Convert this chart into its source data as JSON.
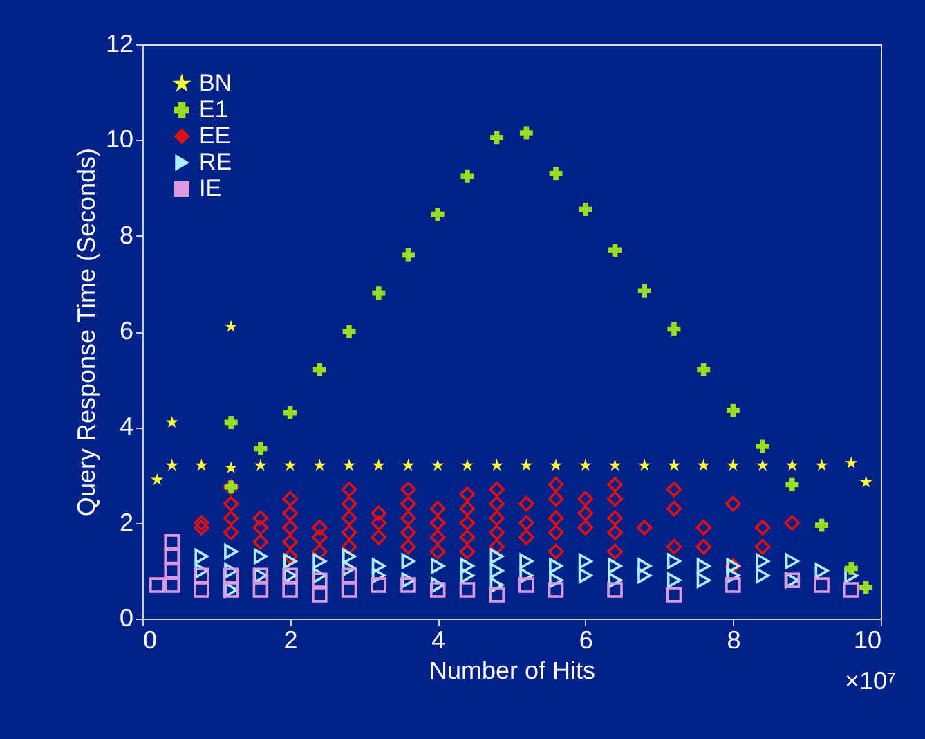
{
  "chart_data": {
    "type": "scatter",
    "xlabel": "Number of Hits",
    "ylabel": "Query Response Time (Seconds)",
    "annotations": [
      "×10⁷"
    ],
    "xlim": [
      0,
      10
    ],
    "xticks": [
      0,
      2,
      4,
      6,
      8,
      10
    ],
    "ylim": [
      0,
      12
    ],
    "yticks": [
      0,
      2,
      4,
      6,
      8,
      10,
      12
    ],
    "grid": false,
    "legend": "top left",
    "series": [
      {
        "name": "BN",
        "color": "#ffff33",
        "marker": "star",
        "x": [
          0.2,
          0.4,
          0.4,
          0.8,
          1.2,
          1.2,
          1.6,
          2.0,
          2.4,
          2.8,
          3.2,
          3.6,
          4.0,
          4.4,
          4.8,
          5.2,
          5.6,
          6.0,
          6.4,
          6.8,
          7.2,
          7.6,
          8.0,
          8.4,
          8.8,
          9.2,
          9.6,
          9.8
        ],
        "values": [
          2.9,
          4.1,
          3.2,
          3.2,
          6.1,
          3.15,
          3.2,
          3.2,
          3.2,
          3.2,
          3.2,
          3.2,
          3.2,
          3.2,
          3.2,
          3.2,
          3.2,
          3.2,
          3.2,
          3.2,
          3.2,
          3.2,
          3.2,
          3.2,
          3.2,
          3.2,
          3.25,
          2.85
        ]
      },
      {
        "name": "E1",
        "color": "#99dd22",
        "marker": "cross",
        "x": [
          1.2,
          1.2,
          1.6,
          2.0,
          2.4,
          2.8,
          3.2,
          3.6,
          4.0,
          4.4,
          4.8,
          5.2,
          5.6,
          6.0,
          6.4,
          6.8,
          7.2,
          7.6,
          8.0,
          8.4,
          8.8,
          9.2,
          9.6,
          9.8
        ],
        "values": [
          4.1,
          2.75,
          3.55,
          4.3,
          5.2,
          6.0,
          6.8,
          7.6,
          8.45,
          9.25,
          10.05,
          10.15,
          9.3,
          8.55,
          7.7,
          6.85,
          6.05,
          5.2,
          4.35,
          3.6,
          2.8,
          1.95,
          1.05,
          0.65
        ]
      },
      {
        "name": "EE",
        "color": "#dd1111",
        "marker": "diamond",
        "x": [
          0.8,
          0.8,
          1.2,
          1.2,
          1.2,
          1.2,
          1.6,
          1.6,
          1.6,
          2.0,
          2.0,
          2.0,
          2.0,
          2.0,
          2.4,
          2.4,
          2.4,
          2.8,
          2.8,
          2.8,
          2.8,
          2.8,
          3.2,
          3.2,
          3.2,
          3.6,
          3.6,
          3.6,
          3.6,
          3.6,
          4.0,
          4.0,
          4.0,
          4.0,
          4.4,
          4.4,
          4.4,
          4.4,
          4.4,
          4.8,
          4.8,
          4.8,
          4.8,
          4.8,
          5.2,
          5.2,
          5.2,
          5.6,
          5.6,
          5.6,
          5.6,
          5.6,
          6.0,
          6.0,
          6.0,
          6.4,
          6.4,
          6.4,
          6.4,
          6.4,
          6.8,
          7.2,
          7.2,
          7.2,
          7.6,
          7.6,
          8.0,
          8.0,
          8.4,
          8.4,
          8.8
        ],
        "values": [
          1.9,
          2.0,
          1.8,
          2.1,
          2.4,
          2.75,
          1.6,
          1.9,
          2.1,
          1.3,
          1.6,
          1.9,
          2.2,
          2.5,
          1.4,
          1.7,
          1.9,
          1.5,
          1.8,
          2.1,
          2.4,
          2.7,
          1.7,
          2.0,
          2.2,
          1.5,
          1.8,
          2.1,
          2.4,
          2.7,
          1.4,
          1.7,
          2.0,
          2.3,
          1.4,
          1.7,
          2.0,
          2.3,
          2.6,
          1.5,
          1.8,
          2.1,
          2.4,
          2.7,
          1.7,
          2.0,
          2.4,
          1.4,
          1.8,
          2.1,
          2.5,
          2.8,
          1.9,
          2.2,
          2.5,
          1.4,
          1.8,
          2.1,
          2.5,
          2.8,
          1.9,
          1.5,
          2.3,
          2.7,
          1.5,
          1.9,
          1.1,
          2.4,
          1.5,
          1.9,
          2.0
        ]
      },
      {
        "name": "RE",
        "color": "#aaeeff",
        "marker": "triangle",
        "x": [
          0.8,
          0.8,
          1.2,
          1.2,
          1.2,
          1.6,
          1.6,
          2.0,
          2.0,
          2.4,
          2.4,
          2.8,
          2.8,
          3.2,
          3.2,
          3.6,
          3.6,
          4.0,
          4.0,
          4.4,
          4.4,
          4.8,
          4.8,
          4.8,
          5.2,
          5.2,
          5.6,
          5.6,
          6.0,
          6.0,
          6.4,
          6.4,
          6.8,
          6.8,
          7.2,
          7.2,
          7.6,
          7.6,
          8.0,
          8.0,
          8.4,
          8.4,
          8.8,
          8.8,
          9.2,
          9.6
        ],
        "values": [
          1.0,
          1.3,
          0.6,
          1.0,
          1.4,
          0.9,
          1.3,
          0.9,
          1.2,
          0.9,
          1.2,
          1.05,
          1.3,
          0.9,
          1.1,
          0.8,
          1.2,
          0.7,
          1.1,
          0.9,
          1.1,
          0.7,
          1.0,
          1.3,
          0.9,
          1.2,
          0.8,
          1.1,
          0.9,
          1.2,
          0.8,
          1.1,
          0.9,
          1.1,
          0.8,
          1.2,
          0.8,
          1.1,
          0.9,
          1.1,
          0.9,
          1.2,
          0.8,
          1.2,
          1.0,
          0.9
        ]
      },
      {
        "name": "IE",
        "color": "#dd99dd",
        "marker": "square",
        "x": [
          0.2,
          0.4,
          0.4,
          0.4,
          0.4,
          0.8,
          0.8,
          1.2,
          1.2,
          1.6,
          1.6,
          2.0,
          2.0,
          2.4,
          2.4,
          2.8,
          2.8,
          3.2,
          3.6,
          4.0,
          4.4,
          4.8,
          5.2,
          5.6,
          6.4,
          7.2,
          8.0,
          8.8,
          9.2,
          9.6
        ],
        "values": [
          0.7,
          0.7,
          1.0,
          1.3,
          1.6,
          0.6,
          0.9,
          0.6,
          0.9,
          0.6,
          0.9,
          0.6,
          0.9,
          0.5,
          0.8,
          0.6,
          0.9,
          0.7,
          0.7,
          0.6,
          0.6,
          0.5,
          0.7,
          0.6,
          0.6,
          0.5,
          0.7,
          0.8,
          0.7,
          0.6
        ]
      }
    ]
  }
}
